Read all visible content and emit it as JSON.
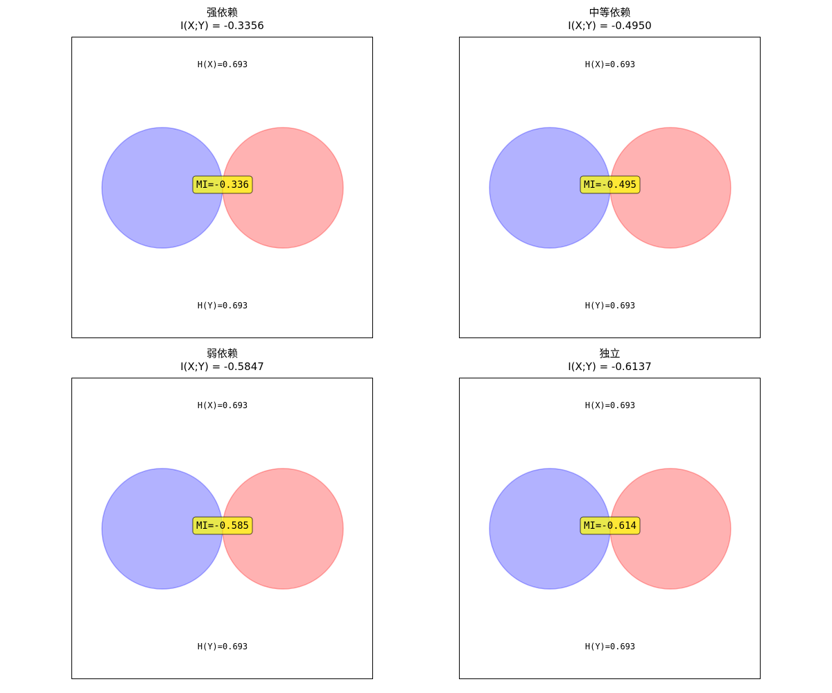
{
  "colors": {
    "x_fill": "#0000ff",
    "x_edge": "#0000ff",
    "y_fill": "#ff0000",
    "y_edge": "#ff0000",
    "mi_box": "#ffff00"
  },
  "panels": [
    {
      "title": "强依赖",
      "subtitle": "I(X;Y) = -0.3356",
      "hx": "H(X)=0.693",
      "hy": "H(Y)=0.693",
      "mi": "MI=-0.336"
    },
    {
      "title": "中等依赖",
      "subtitle": "I(X;Y) = -0.4950",
      "hx": "H(X)=0.693",
      "hy": "H(Y)=0.693",
      "mi": "MI=-0.495"
    },
    {
      "title": "弱依赖",
      "subtitle": "I(X;Y) = -0.5847",
      "hx": "H(X)=0.693",
      "hy": "H(Y)=0.693",
      "mi": "MI=-0.585"
    },
    {
      "title": "独立",
      "subtitle": "I(X;Y) = -0.6137",
      "hx": "H(X)=0.693",
      "hy": "H(Y)=0.693",
      "mi": "MI=-0.614"
    }
  ]
}
